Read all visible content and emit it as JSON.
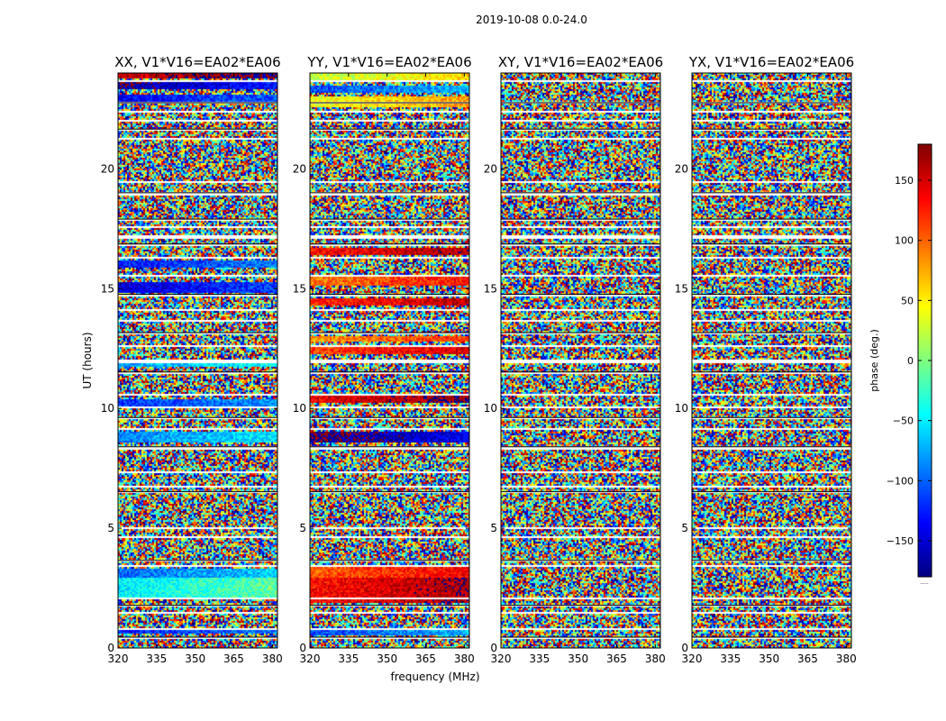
{
  "chart_data": {
    "type": "heatmap",
    "title": "2019-10-08 0.0-24.0",
    "xlabel": "frequency (MHz)",
    "ylabel": "UT (hours)",
    "xlim": [
      320,
      382
    ],
    "ylim": [
      0,
      24
    ],
    "x_ticks": [
      "320",
      "335",
      "350",
      "365",
      "380"
    ],
    "y_ticks": [
      "0",
      "5",
      "10",
      "15",
      "20"
    ],
    "panels": [
      {
        "title": "XX, V1*V16=EA02*EA06",
        "coherent_bands": [
          {
            "t0": 0.6,
            "t1": 0.8,
            "phase": -110
          },
          {
            "t0": 2.0,
            "t1": 2.9,
            "phase": -30
          },
          {
            "t0": 2.9,
            "t1": 3.3,
            "phase": -80
          },
          {
            "t0": 8.6,
            "t1": 9.0,
            "phase": -70
          },
          {
            "t0": 10.1,
            "t1": 10.4,
            "phase": -100
          },
          {
            "t0": 11.7,
            "t1": 12.0,
            "phase": -60
          },
          {
            "t0": 14.8,
            "t1": 15.3,
            "phase": -130
          },
          {
            "t0": 15.9,
            "t1": 16.2,
            "phase": -110
          },
          {
            "t0": 22.8,
            "t1": 23.1,
            "phase": -120
          },
          {
            "t0": 23.3,
            "t1": 23.6,
            "phase": -150
          },
          {
            "t0": 23.8,
            "t1": 24.0,
            "phase": 170
          }
        ]
      },
      {
        "title": "YY, V1*V16=EA02*EA06",
        "coherent_bands": [
          {
            "t0": 0.5,
            "t1": 0.8,
            "phase": -90
          },
          {
            "t0": 1.9,
            "t1": 2.9,
            "phase": 150
          },
          {
            "t0": 2.9,
            "t1": 3.4,
            "phase": 120
          },
          {
            "t0": 8.6,
            "t1": 9.0,
            "phase": -160
          },
          {
            "t0": 10.2,
            "t1": 10.5,
            "phase": 160
          },
          {
            "t0": 12.3,
            "t1": 12.6,
            "phase": 130
          },
          {
            "t0": 12.8,
            "t1": 13.0,
            "phase": 100
          },
          {
            "t0": 14.3,
            "t1": 14.6,
            "phase": 140
          },
          {
            "t0": 15.1,
            "t1": 15.5,
            "phase": 110
          },
          {
            "t0": 16.4,
            "t1": 16.7,
            "phase": 150
          },
          {
            "t0": 22.6,
            "t1": 23.0,
            "phase": 60
          },
          {
            "t0": 23.2,
            "t1": 23.5,
            "phase": -90
          },
          {
            "t0": 23.6,
            "t1": 24.0,
            "phase": 40
          }
        ]
      },
      {
        "title": "XY, V1*V16=EA02*EA06",
        "coherent_bands": []
      },
      {
        "title": "YX, V1*V16=EA02*EA06",
        "coherent_bands": []
      }
    ],
    "flagged_bands": [
      [
        0.35,
        0.45
      ],
      [
        0.75,
        0.82
      ],
      [
        1.45,
        1.52
      ],
      [
        1.7,
        1.78
      ],
      [
        2.05,
        2.1
      ],
      [
        3.35,
        3.45
      ],
      [
        3.6,
        3.66
      ],
      [
        4.6,
        4.66
      ],
      [
        5.0,
        5.06
      ],
      [
        6.45,
        6.52
      ],
      [
        6.7,
        6.8
      ],
      [
        7.3,
        7.36
      ],
      [
        8.3,
        8.4
      ],
      [
        8.55,
        8.6
      ],
      [
        9.1,
        9.16
      ],
      [
        9.55,
        9.62
      ],
      [
        10.0,
        10.06
      ],
      [
        10.5,
        10.58
      ],
      [
        11.45,
        11.52
      ],
      [
        11.9,
        12.05
      ],
      [
        12.6,
        12.66
      ],
      [
        13.1,
        13.16
      ],
      [
        13.6,
        13.66
      ],
      [
        14.1,
        14.16
      ],
      [
        14.7,
        14.76
      ],
      [
        15.5,
        15.56
      ],
      [
        16.25,
        16.35
      ],
      [
        16.8,
        16.86
      ],
      [
        17.1,
        17.2
      ],
      [
        17.55,
        17.6
      ],
      [
        17.8,
        17.9
      ],
      [
        18.1,
        18.16
      ],
      [
        18.4,
        18.46
      ],
      [
        18.9,
        19.0
      ],
      [
        19.4,
        19.46
      ],
      [
        21.2,
        21.26
      ],
      [
        21.6,
        21.66
      ],
      [
        22.0,
        22.06
      ],
      [
        22.35,
        22.45
      ],
      [
        22.7,
        22.76
      ],
      [
        23.15,
        23.2
      ],
      [
        23.65,
        23.7
      ]
    ],
    "colorbar": {
      "label": "phase (deg.)",
      "range": [
        -180,
        180
      ],
      "ticks": [
        "−150",
        "−100",
        "−50",
        "0",
        "50",
        "100",
        "150"
      ],
      "tick_values": [
        -150,
        -100,
        -50,
        0,
        50,
        100,
        150
      ],
      "colormap": "jet",
      "footer": "....."
    },
    "colors": {
      "jet_stops": [
        "#00007f",
        "#0000ff",
        "#007fff",
        "#00ffff",
        "#7fff7f",
        "#ffff00",
        "#ff7f00",
        "#ff0000",
        "#7f0000"
      ],
      "flag": "#ffffff",
      "frame": "#000000",
      "background": "#ffffff"
    }
  }
}
